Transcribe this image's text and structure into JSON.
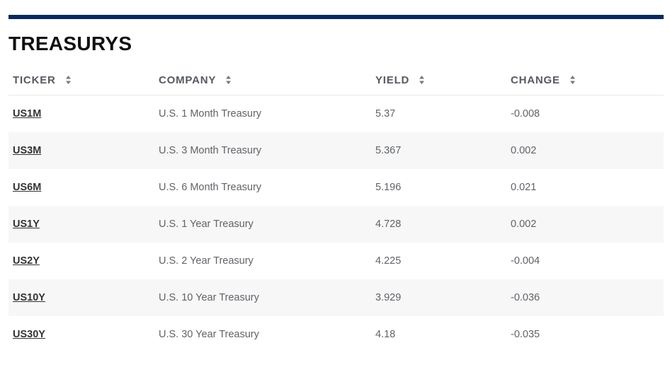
{
  "section": {
    "title": "TREASURYS"
  },
  "table": {
    "columns": [
      {
        "label": "TICKER"
      },
      {
        "label": "COMPANY"
      },
      {
        "label": "YIELD"
      },
      {
        "label": "CHANGE"
      }
    ],
    "rows": [
      {
        "ticker": "US1M",
        "company": "U.S. 1 Month Treasury",
        "yield": "5.37",
        "change": "-0.008"
      },
      {
        "ticker": "US3M",
        "company": "U.S. 3 Month Treasury",
        "yield": "5.367",
        "change": "0.002"
      },
      {
        "ticker": "US6M",
        "company": "U.S. 6 Month Treasury",
        "yield": "5.196",
        "change": "0.021"
      },
      {
        "ticker": "US1Y",
        "company": "U.S. 1 Year Treasury",
        "yield": "4.728",
        "change": "0.002"
      },
      {
        "ticker": "US2Y",
        "company": "U.S. 2 Year Treasury",
        "yield": "4.225",
        "change": "-0.004"
      },
      {
        "ticker": "US10Y",
        "company": "U.S. 10 Year Treasury",
        "yield": "3.929",
        "change": "-0.036"
      },
      {
        "ticker": "US30Y",
        "company": "U.S. 30 Year Treasury",
        "yield": "4.18",
        "change": "-0.035"
      }
    ]
  },
  "colors": {
    "top_bar": "#0b2a5b",
    "row_stripe": "#f7f7f7"
  },
  "icons": {
    "sort": "sort-arrows-icon"
  }
}
